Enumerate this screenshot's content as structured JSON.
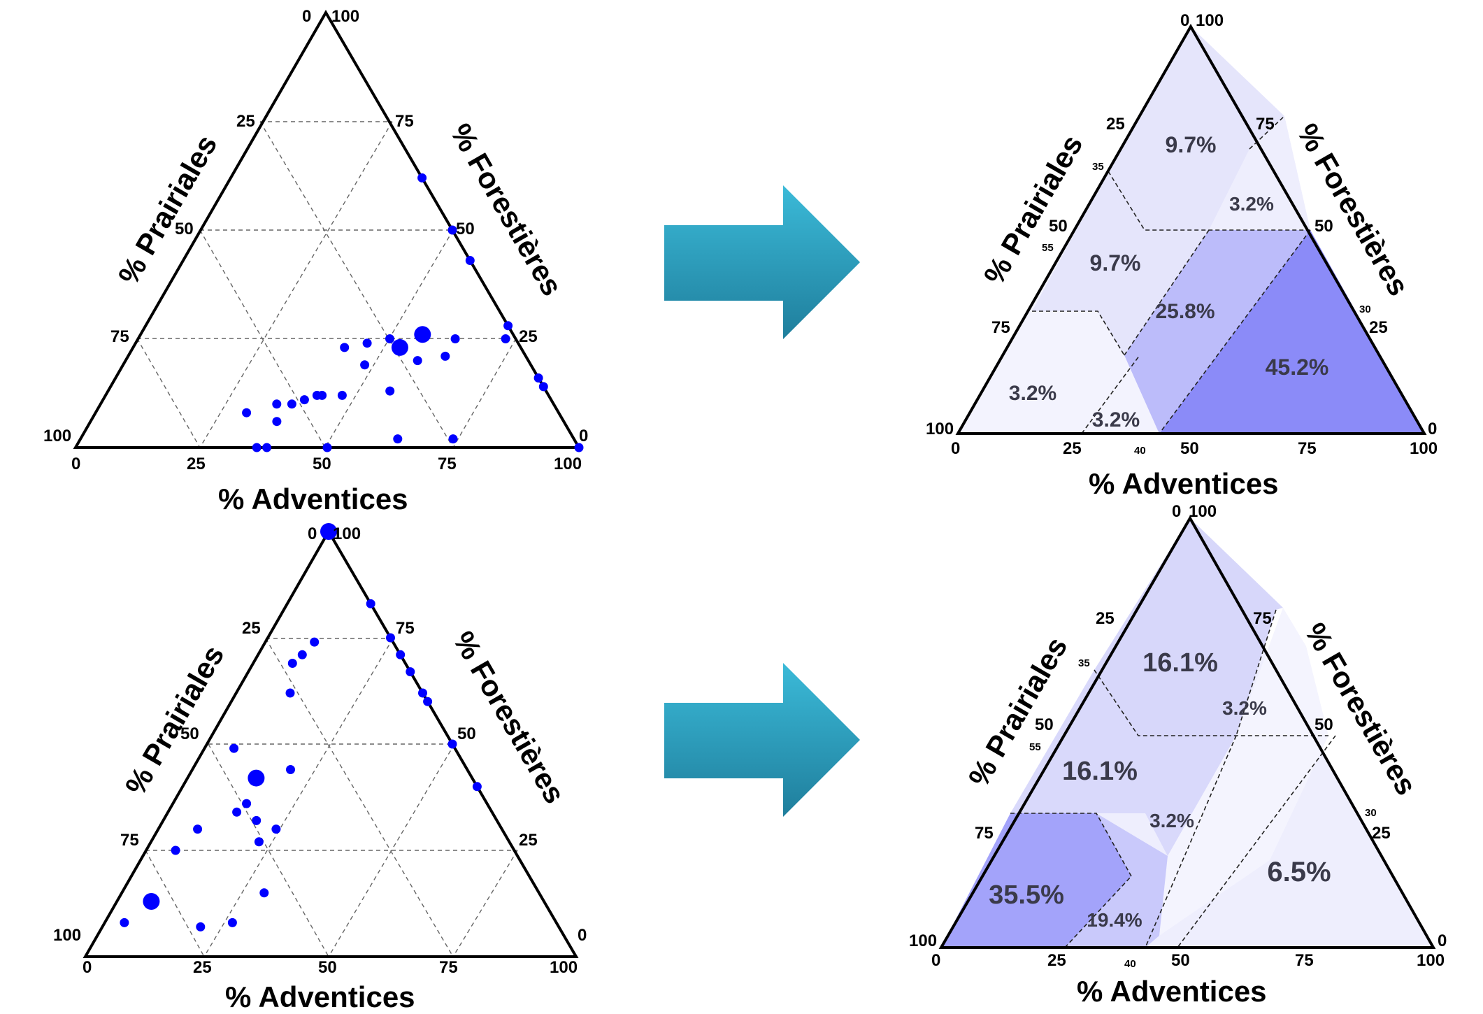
{
  "colors": {
    "point": "#0000ff",
    "arrow_top": "#38b6d4",
    "arrow_bottom": "#1f7f9e",
    "region_light": "#f1f1fd",
    "region_mid": "#e3e3fb",
    "region_strong": "#bdbdf9",
    "region_darkest": "#8c8cf8"
  },
  "chart_data": [
    {
      "type": "scatter",
      "subtype": "ternary",
      "title": "",
      "axes": {
        "bottom": {
          "label": "% Adventices",
          "ticks": [
            "0",
            "25",
            "50",
            "75",
            "100"
          ]
        },
        "left": {
          "label": "% Prairiales",
          "ticks": [
            "100",
            "75",
            "50",
            "25",
            "0"
          ]
        },
        "right": {
          "label": "% Forestières",
          "ticks": [
            "0",
            "25",
            "50",
            "75",
            "100"
          ]
        }
      },
      "apex_labels": {
        "top_left": "0",
        "top_right": "100"
      },
      "grid": true,
      "points": [
        {
          "adventices": 0.3,
          "prairiales": 0.62,
          "size": 1
        },
        {
          "adventices": 0.42,
          "prairiales": 0.35,
          "size": 1
        },
        {
          "adventices": 0.42,
          "prairiales": 0.46,
          "size": 1
        },
        {
          "adventices": 0.4,
          "prairiales": 0.49,
          "size": 1
        },
        {
          "adventices": 0.38,
          "prairiales": 0.52,
          "size": 1
        },
        {
          "adventices": 0.35,
          "prairiales": 0.55,
          "size": 1
        },
        {
          "adventices": 0.37,
          "prairiales": 0.57,
          "size": 1
        },
        {
          "adventices": 0.48,
          "prairiales": 0.33,
          "size": 1
        },
        {
          "adventices": 0.53,
          "prairiales": 0.24,
          "size": 2
        },
        {
          "adventices": 0.58,
          "prairiales": 0.22,
          "size": 1
        },
        {
          "adventices": 0.47,
          "prairiales": 0.41,
          "size": 1
        },
        {
          "adventices": 0.43,
          "prairiales": 0.45,
          "size": 1
        },
        {
          "adventices": 0.63,
          "prairiales": 0.12,
          "size": 1
        },
        {
          "adventices": 0.63,
          "prairiales": 0.16,
          "size": 1
        },
        {
          "adventices": 0.73,
          "prairiales": 0.02,
          "size": 1
        },
        {
          "adventices": 0.56,
          "prairiales": 0.31,
          "size": 1
        },
        {
          "adventices": 0.56,
          "prairiales": 0.18,
          "size": 2
        },
        {
          "adventices": 0.5,
          "prairiales": 0.25,
          "size": 1
        },
        {
          "adventices": 0.46,
          "prairiales": 0.3,
          "size": 1
        },
        {
          "adventices": 0.63,
          "prairiales": 0.35,
          "size": 1
        },
        {
          "adventices": 0.74,
          "prairiales": 0.24,
          "size": 1
        },
        {
          "adventices": 0.86,
          "prairiales": 0.0,
          "size": 1
        },
        {
          "adventices": 0.38,
          "prairiales": 0.62,
          "size": 1
        },
        {
          "adventices": 0.36,
          "prairiales": 0.64,
          "size": 1
        },
        {
          "adventices": 0.5,
          "prairiales": 0.5,
          "size": 1
        },
        {
          "adventices": 0.38,
          "prairiales": 0.0,
          "size": 1
        },
        {
          "adventices": 0.5,
          "prairiales": 0.0,
          "size": 1
        },
        {
          "adventices": 0.57,
          "prairiales": 0.0,
          "size": 1
        },
        {
          "adventices": 0.72,
          "prairiales": 0.0,
          "size": 1
        },
        {
          "adventices": 0.84,
          "prairiales": 0.0,
          "size": 1
        },
        {
          "adventices": 1.0,
          "prairiales": 0.0,
          "size": 1
        }
      ]
    },
    {
      "type": "heatmap",
      "subtype": "ternary-regions",
      "title": "",
      "axes": {
        "bottom": {
          "label": "% Adventices",
          "ticks": [
            "0",
            "25",
            "50",
            "75",
            "100"
          ],
          "extra_ticks": [
            "40"
          ]
        },
        "left": {
          "label": "% Prairiales",
          "ticks": [
            "100",
            "75",
            "50",
            "25",
            "0"
          ],
          "extra_ticks": [
            "55",
            "35"
          ]
        },
        "right": {
          "label": "% Forestières",
          "ticks": [
            "0",
            "25",
            "50",
            "75",
            "100"
          ],
          "extra_ticks": [
            "30"
          ]
        }
      },
      "apex_labels": {
        "top_left": "0",
        "top_right": "100"
      },
      "regions": [
        {
          "label": "9.7%",
          "value": 9.7
        },
        {
          "label": "3.2%",
          "value": 3.2
        },
        {
          "label": "9.7%",
          "value": 9.7
        },
        {
          "label": "25.8%",
          "value": 25.8
        },
        {
          "label": "3.2%",
          "value": 3.2
        },
        {
          "label": "3.2%",
          "value": 3.2
        },
        {
          "label": "45.2%",
          "value": 45.2
        }
      ]
    },
    {
      "type": "scatter",
      "subtype": "ternary",
      "title": "",
      "axes": {
        "bottom": {
          "label": "% Adventices",
          "ticks": [
            "0",
            "25",
            "50",
            "75",
            "100"
          ]
        },
        "left": {
          "label": "% Prairiales",
          "ticks": [
            "100",
            "75",
            "50",
            "25",
            "0"
          ]
        },
        "right": {
          "label": "% Forestières",
          "ticks": [
            "0",
            "25",
            "50",
            "75",
            "100"
          ]
        }
      },
      "apex_labels": {
        "top_left": "0",
        "top_right": "100"
      },
      "grid": true,
      "points": [
        {
          "adventices": 0.04,
          "prairiales": 0.88,
          "size": 1
        },
        {
          "adventices": 0.07,
          "prairiales": 0.8,
          "size": 2
        },
        {
          "adventices": 0.2,
          "prairiales": 0.73,
          "size": 1
        },
        {
          "adventices": 0.26,
          "prairiales": 0.66,
          "size": 1
        },
        {
          "adventices": 0.06,
          "prairiales": 0.69,
          "size": 1
        },
        {
          "adventices": 0.29,
          "prairiales": 0.56,
          "size": 1
        },
        {
          "adventices": 0.08,
          "prairiales": 0.62,
          "size": 1
        },
        {
          "adventices": 0.22,
          "prairiales": 0.51,
          "size": 1
        },
        {
          "adventices": 0.24,
          "prairiales": 0.46,
          "size": 1
        },
        {
          "adventices": 0.15,
          "prairiales": 0.49,
          "size": 1
        },
        {
          "adventices": 0.14,
          "prairiales": 0.52,
          "size": 1
        },
        {
          "adventices": 0.19,
          "prairiales": 0.49,
          "size": 1
        },
        {
          "adventices": 0.06,
          "prairiales": 0.45,
          "size": 1
        },
        {
          "adventices": 0.14,
          "prairiales": 0.44,
          "size": 2
        },
        {
          "adventices": 0.2,
          "prairiales": 0.36,
          "size": 1
        },
        {
          "adventices": 0.1,
          "prairiales": 0.16,
          "size": 1
        },
        {
          "adventices": 0.09,
          "prairiales": 0.2,
          "size": 1
        },
        {
          "adventices": 0.08,
          "prairiales": 0.23,
          "size": 1
        },
        {
          "adventices": 0.11,
          "prairiales": 0.27,
          "size": 1
        },
        {
          "adventices": 0.0,
          "prairiales": 0.0,
          "size": 2
        },
        {
          "adventices": 0.17,
          "prairiales": 0.0,
          "size": 1
        },
        {
          "adventices": 0.25,
          "prairiales": 0.0,
          "size": 1
        },
        {
          "adventices": 0.29,
          "prairiales": 0.0,
          "size": 1
        },
        {
          "adventices": 0.33,
          "prairiales": 0.0,
          "size": 1
        },
        {
          "adventices": 0.38,
          "prairiales": 0.0,
          "size": 1
        },
        {
          "adventices": 0.4,
          "prairiales": 0.0,
          "size": 1
        },
        {
          "adventices": 0.5,
          "prairiales": 0.0,
          "size": 1
        },
        {
          "adventices": 0.6,
          "prairiales": 0.0,
          "size": 1
        }
      ]
    },
    {
      "type": "heatmap",
      "subtype": "ternary-regions",
      "title": "",
      "axes": {
        "bottom": {
          "label": "% Adventices",
          "ticks": [
            "0",
            "25",
            "50",
            "75",
            "100"
          ],
          "extra_ticks": [
            "40"
          ]
        },
        "left": {
          "label": "% Prairiales",
          "ticks": [
            "100",
            "75",
            "50",
            "25",
            "0"
          ],
          "extra_ticks": [
            "55",
            "35"
          ]
        },
        "right": {
          "label": "% Forestières",
          "ticks": [
            "0",
            "25",
            "50",
            "75",
            "100"
          ],
          "extra_ticks": [
            "30"
          ]
        }
      },
      "apex_labels": {
        "top_left": "0",
        "top_right": "100"
      },
      "regions": [
        {
          "label": "16.1%",
          "value": 16.1
        },
        {
          "label": "3.2%",
          "value": 3.2
        },
        {
          "label": "16.1%",
          "value": 16.1
        },
        {
          "label": "3.2%",
          "value": 3.2
        },
        {
          "label": "35.5%",
          "value": 35.5
        },
        {
          "label": "19.4%",
          "value": 19.4
        },
        {
          "label": "6.5%",
          "value": 6.5
        }
      ]
    }
  ]
}
